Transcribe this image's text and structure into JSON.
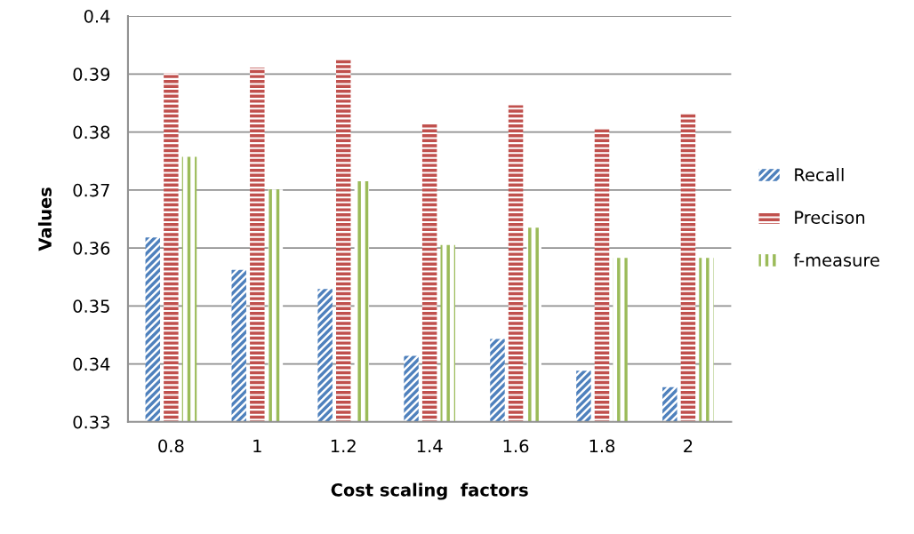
{
  "chart_data": {
    "type": "bar",
    "xlabel": "Cost scaling  factors",
    "ylabel": "Values",
    "categories": [
      "0.8",
      "1",
      "1.2",
      "1.4",
      "1.6",
      "1.8",
      "2"
    ],
    "series": [
      {
        "name": "Recall",
        "color": "#4f81bd",
        "values": [
          0.3618,
          0.3562,
          0.3529,
          0.3414,
          0.3443,
          0.3388,
          0.336
        ]
      },
      {
        "name": "Precison",
        "color": "#c0504d",
        "values": [
          0.3902,
          0.3911,
          0.3925,
          0.3814,
          0.3846,
          0.3805,
          0.3833
        ]
      },
      {
        "name": "f-measure",
        "color": "#9bbb59",
        "values": [
          0.3757,
          0.3701,
          0.3715,
          0.3605,
          0.3635,
          0.3583,
          0.3583
        ]
      }
    ],
    "ylim": [
      0.33,
      0.4
    ],
    "yticks": [
      0.33,
      0.34,
      0.35,
      0.36,
      0.37,
      0.38,
      0.39,
      0.4
    ],
    "grid": "y",
    "legend": "right"
  }
}
